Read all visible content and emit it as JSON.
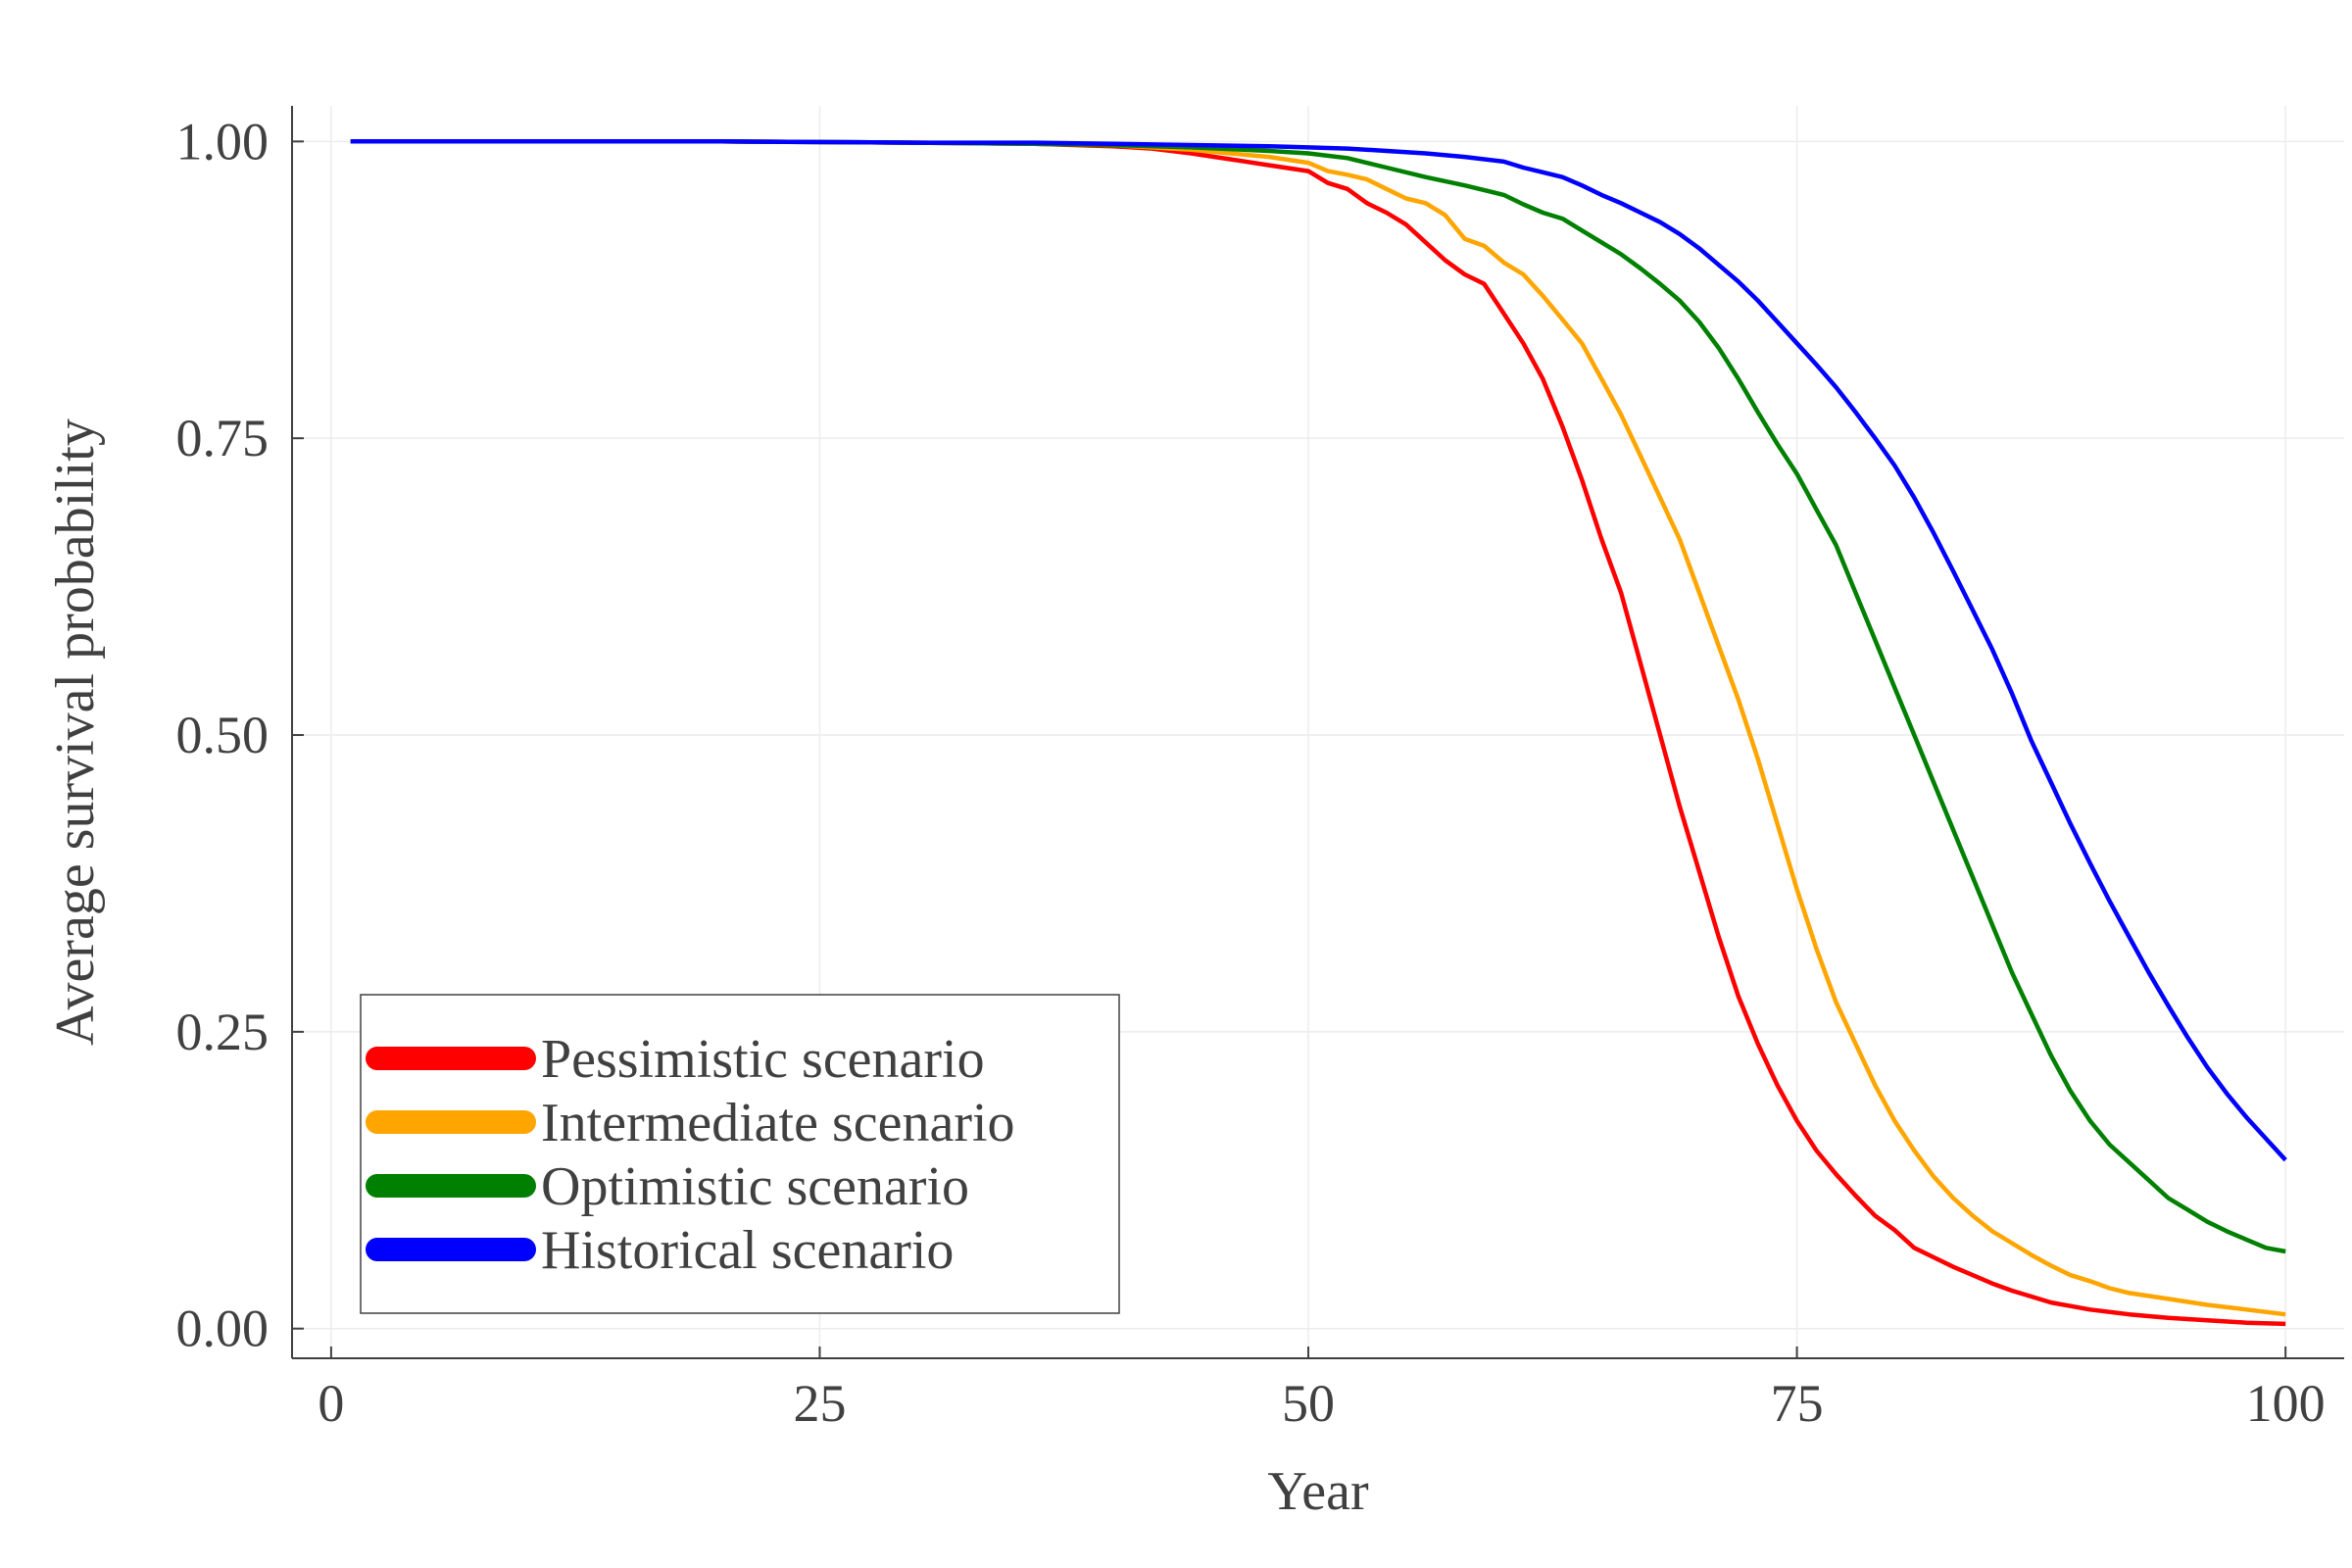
{
  "chart_data": {
    "type": "line",
    "title": "",
    "xlabel": "Year",
    "ylabel": "Average survival probability",
    "xlim": [
      -2,
      103
    ],
    "ylim": [
      -0.025,
      1.03
    ],
    "xticks": [
      0,
      25,
      50,
      75,
      100
    ],
    "xtick_labels": [
      "0",
      "25",
      "50",
      "75",
      "100"
    ],
    "yticks": [
      0,
      0.25,
      0.5,
      0.75,
      1.0
    ],
    "ytick_labels": [
      "0.00",
      "0.25",
      "0.50",
      "0.75",
      "1.00"
    ],
    "grid": true,
    "legend_position": "bottom-left",
    "series": [
      {
        "name": "Pessimistic scenario",
        "color": "#ff0000",
        "points": [
          [
            1,
            1.0
          ],
          [
            10,
            1.0
          ],
          [
            20,
            1.0
          ],
          [
            30,
            0.999
          ],
          [
            36,
            0.998
          ],
          [
            40,
            0.996
          ],
          [
            42,
            0.994
          ],
          [
            44,
            0.99
          ],
          [
            46,
            0.985
          ],
          [
            48,
            0.98
          ],
          [
            50,
            0.975
          ],
          [
            51,
            0.965
          ],
          [
            52,
            0.96
          ],
          [
            53,
            0.948
          ],
          [
            54,
            0.94
          ],
          [
            55,
            0.93
          ],
          [
            56,
            0.915
          ],
          [
            57,
            0.9
          ],
          [
            58,
            0.888
          ],
          [
            59,
            0.88
          ],
          [
            60,
            0.855
          ],
          [
            61,
            0.83
          ],
          [
            62,
            0.8
          ],
          [
            63,
            0.76
          ],
          [
            64,
            0.715
          ],
          [
            65,
            0.665
          ],
          [
            66,
            0.62
          ],
          [
            67,
            0.56
          ],
          [
            68,
            0.5
          ],
          [
            69,
            0.44
          ],
          [
            70,
            0.385
          ],
          [
            71,
            0.33
          ],
          [
            72,
            0.28
          ],
          [
            73,
            0.24
          ],
          [
            74,
            0.205
          ],
          [
            75,
            0.175
          ],
          [
            76,
            0.15
          ],
          [
            77,
            0.13
          ],
          [
            78,
            0.112
          ],
          [
            79,
            0.095
          ],
          [
            80,
            0.083
          ],
          [
            81,
            0.068
          ],
          [
            82,
            0.06
          ],
          [
            83,
            0.052
          ],
          [
            84,
            0.045
          ],
          [
            85,
            0.038
          ],
          [
            86,
            0.032
          ],
          [
            87,
            0.027
          ],
          [
            88,
            0.022
          ],
          [
            89,
            0.019
          ],
          [
            90,
            0.016
          ],
          [
            92,
            0.012
          ],
          [
            94,
            0.009
          ],
          [
            96,
            0.007
          ],
          [
            98,
            0.005
          ],
          [
            100,
            0.004
          ]
        ]
      },
      {
        "name": "Intermediate scenario",
        "color": "#ffa500",
        "points": [
          [
            1,
            1.0
          ],
          [
            10,
            1.0
          ],
          [
            20,
            1.0
          ],
          [
            30,
            0.999
          ],
          [
            36,
            0.998
          ],
          [
            40,
            0.997
          ],
          [
            42,
            0.995
          ],
          [
            44,
            0.993
          ],
          [
            46,
            0.99
          ],
          [
            48,
            0.987
          ],
          [
            50,
            0.982
          ],
          [
            51,
            0.975
          ],
          [
            52,
            0.972
          ],
          [
            53,
            0.968
          ],
          [
            54,
            0.96
          ],
          [
            55,
            0.952
          ],
          [
            56,
            0.948
          ],
          [
            57,
            0.938
          ],
          [
            58,
            0.918
          ],
          [
            59,
            0.912
          ],
          [
            60,
            0.898
          ],
          [
            61,
            0.888
          ],
          [
            62,
            0.87
          ],
          [
            63,
            0.85
          ],
          [
            64,
            0.83
          ],
          [
            65,
            0.8
          ],
          [
            66,
            0.77
          ],
          [
            67,
            0.735
          ],
          [
            68,
            0.7
          ],
          [
            69,
            0.665
          ],
          [
            70,
            0.62
          ],
          [
            71,
            0.575
          ],
          [
            72,
            0.53
          ],
          [
            73,
            0.48
          ],
          [
            74,
            0.425
          ],
          [
            75,
            0.37
          ],
          [
            76,
            0.32
          ],
          [
            77,
            0.275
          ],
          [
            78,
            0.24
          ],
          [
            79,
            0.205
          ],
          [
            80,
            0.175
          ],
          [
            81,
            0.15
          ],
          [
            82,
            0.128
          ],
          [
            83,
            0.11
          ],
          [
            84,
            0.095
          ],
          [
            85,
            0.082
          ],
          [
            86,
            0.072
          ],
          [
            87,
            0.062
          ],
          [
            88,
            0.053
          ],
          [
            89,
            0.045
          ],
          [
            90,
            0.04
          ],
          [
            91,
            0.034
          ],
          [
            92,
            0.03
          ],
          [
            94,
            0.025
          ],
          [
            96,
            0.02
          ],
          [
            98,
            0.016
          ],
          [
            100,
            0.012
          ]
        ]
      },
      {
        "name": "Optimistic scenario",
        "color": "#008000",
        "points": [
          [
            1,
            1.0
          ],
          [
            10,
            1.0
          ],
          [
            20,
            1.0
          ],
          [
            30,
            0.999
          ],
          [
            36,
            0.998
          ],
          [
            40,
            0.997
          ],
          [
            44,
            0.995
          ],
          [
            48,
            0.992
          ],
          [
            50,
            0.99
          ],
          [
            52,
            0.986
          ],
          [
            54,
            0.978
          ],
          [
            56,
            0.97
          ],
          [
            58,
            0.963
          ],
          [
            60,
            0.955
          ],
          [
            61,
            0.947
          ],
          [
            62,
            0.94
          ],
          [
            63,
            0.935
          ],
          [
            64,
            0.925
          ],
          [
            65,
            0.915
          ],
          [
            66,
            0.905
          ],
          [
            67,
            0.893
          ],
          [
            68,
            0.88
          ],
          [
            69,
            0.866
          ],
          [
            70,
            0.848
          ],
          [
            71,
            0.826
          ],
          [
            72,
            0.8
          ],
          [
            73,
            0.772
          ],
          [
            74,
            0.745
          ],
          [
            75,
            0.72
          ],
          [
            76,
            0.69
          ],
          [
            77,
            0.66
          ],
          [
            78,
            0.62
          ],
          [
            79,
            0.58
          ],
          [
            80,
            0.54
          ],
          [
            81,
            0.5
          ],
          [
            82,
            0.46
          ],
          [
            83,
            0.42
          ],
          [
            84,
            0.38
          ],
          [
            85,
            0.34
          ],
          [
            86,
            0.3
          ],
          [
            87,
            0.265
          ],
          [
            88,
            0.23
          ],
          [
            89,
            0.2
          ],
          [
            90,
            0.175
          ],
          [
            91,
            0.155
          ],
          [
            92,
            0.14
          ],
          [
            93,
            0.125
          ],
          [
            94,
            0.11
          ],
          [
            95,
            0.1
          ],
          [
            96,
            0.09
          ],
          [
            97,
            0.082
          ],
          [
            98,
            0.075
          ],
          [
            99,
            0.068
          ],
          [
            100,
            0.065
          ]
        ]
      },
      {
        "name": "Historical scenario",
        "color": "#0000ff",
        "points": [
          [
            1,
            1.0
          ],
          [
            10,
            1.0
          ],
          [
            20,
            1.0
          ],
          [
            30,
            0.999
          ],
          [
            36,
            0.999
          ],
          [
            40,
            0.998
          ],
          [
            44,
            0.997
          ],
          [
            48,
            0.996
          ],
          [
            50,
            0.995
          ],
          [
            52,
            0.994
          ],
          [
            54,
            0.992
          ],
          [
            56,
            0.99
          ],
          [
            58,
            0.987
          ],
          [
            60,
            0.983
          ],
          [
            61,
            0.978
          ],
          [
            62,
            0.974
          ],
          [
            63,
            0.97
          ],
          [
            64,
            0.963
          ],
          [
            65,
            0.955
          ],
          [
            66,
            0.948
          ],
          [
            67,
            0.94
          ],
          [
            68,
            0.932
          ],
          [
            69,
            0.922
          ],
          [
            70,
            0.91
          ],
          [
            71,
            0.896
          ],
          [
            72,
            0.882
          ],
          [
            73,
            0.866
          ],
          [
            74,
            0.848
          ],
          [
            75,
            0.83
          ],
          [
            76,
            0.812
          ],
          [
            77,
            0.793
          ],
          [
            78,
            0.772
          ],
          [
            79,
            0.75
          ],
          [
            80,
            0.727
          ],
          [
            81,
            0.7
          ],
          [
            82,
            0.67
          ],
          [
            83,
            0.638
          ],
          [
            84,
            0.605
          ],
          [
            85,
            0.572
          ],
          [
            86,
            0.535
          ],
          [
            87,
            0.495
          ],
          [
            88,
            0.46
          ],
          [
            89,
            0.425
          ],
          [
            90,
            0.392
          ],
          [
            91,
            0.36
          ],
          [
            92,
            0.33
          ],
          [
            93,
            0.3
          ],
          [
            94,
            0.272
          ],
          [
            95,
            0.245
          ],
          [
            96,
            0.22
          ],
          [
            97,
            0.198
          ],
          [
            98,
            0.178
          ],
          [
            99,
            0.16
          ],
          [
            100,
            0.142
          ]
        ]
      }
    ]
  }
}
